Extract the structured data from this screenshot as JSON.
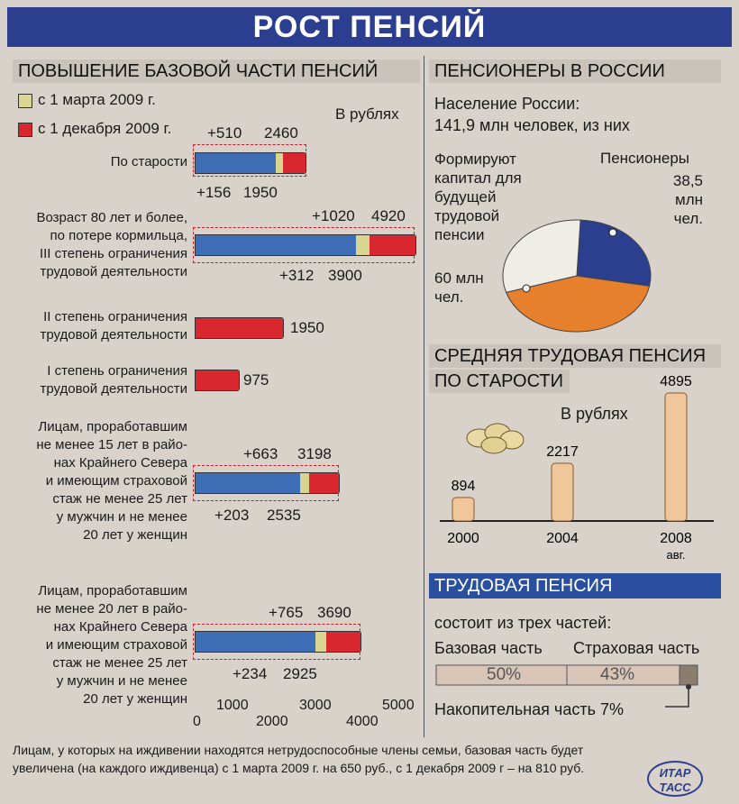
{
  "title": "РОСТ ПЕНСИЙ",
  "left": {
    "header": "ПОВЫШЕНИЕ БАЗОВОЙ ЧАСТИ ПЕНСИЙ",
    "legend": [
      {
        "label": "с 1 марта 2009 г.",
        "color": "#d7d58f"
      },
      {
        "label": "с 1 декабря 2009 г.",
        "color": "#d8272e"
      }
    ],
    "unit": "В рублях",
    "base_color": "#3e6fb6",
    "axis_ticks": [
      "0",
      "1000",
      "2000",
      "3000",
      "4000",
      "5000"
    ],
    "footnote": "Лицам, у которых на иждивении находятся нетрудоспособные члены семьи, базовая часть будет увеличена (на каждого иждивенца) с 1 марта 2009 г. на 650 руб., с 1 декабря 2009 г – на 810 руб."
  },
  "chart_data": [
    {
      "type": "bar",
      "orientation": "horizontal",
      "title": "ПОВЫШЕНИЕ БАЗОВОЙ ЧАСТИ ПЕНСИЙ",
      "unit": "В рублях",
      "xlim": [
        0,
        5000
      ],
      "rows": [
        {
          "label": "По старости",
          "march": 1950,
          "march_inc": "+156",
          "dec": 2460,
          "dec_inc": "+510"
        },
        {
          "label": "Возраст 80 лет и более, по потере кормильца, III степень ограничения трудовой деятельности",
          "march": 3900,
          "march_inc": "+312",
          "dec": 4920,
          "dec_inc": "+1020"
        },
        {
          "label": "II степень ограничения трудовой деятельности",
          "value": 1950
        },
        {
          "label": "I степень ограничения трудовой деятельности",
          "value": 975
        },
        {
          "label": "Лицам, проработавшим не менее 15 лет в районах Крайнего Севера и имеющим страховой стаж не менее 25 лет у мужчин и не менее 20 лет у женщин",
          "march": 2535,
          "march_inc": "+203",
          "dec": 3198,
          "dec_inc": "+663"
        },
        {
          "label": "Лицам, проработавшим не менее 20 лет в районах Крайнего Севера и имеющим страховой стаж не менее 25 лет у мужчин и не менее 20 лет у женщин",
          "march": 2925,
          "march_inc": "+234",
          "dec": 3690,
          "dec_inc": "+765"
        }
      ]
    },
    {
      "type": "pie",
      "title": "ПЕНСИОНЕРЫ В РОССИИ",
      "intro": "Население России: 141,9 млн человек, из них",
      "slices": [
        {
          "label": "Пенсионеры",
          "value_text": "38,5 млн чел.",
          "value": 38.5,
          "color": "#2b3f8e"
        },
        {
          "label": "Формируют капитал для будущей трудовой пенсии",
          "value_text": "60 млн чел.",
          "value": 60,
          "color": "#e6802c"
        },
        {
          "label": "",
          "value": 43.4,
          "color": "#f0ece6"
        }
      ]
    },
    {
      "type": "bar",
      "title": "СРЕДНЯЯ ТРУДОВАЯ ПЕНСИЯ ПО СТАРОСТИ",
      "unit": "В рублях",
      "categories": [
        "2000",
        "2004",
        "2008 авг."
      ],
      "values": [
        894,
        2217,
        4895
      ],
      "color": "#f0c79a"
    },
    {
      "type": "bar",
      "stacked": true,
      "title": "ТРУДОВАЯ ПЕНСИЯ",
      "subtitle": "состоит из трех частей:",
      "parts": [
        {
          "label": "Базовая часть",
          "value": 50,
          "text": "50%"
        },
        {
          "label": "Страховая часть",
          "value": 43,
          "text": "43%"
        },
        {
          "label": "Накопительная часть 7%",
          "value": 7,
          "text": "7%"
        }
      ]
    }
  ],
  "right": {
    "pens_header": "ПЕНСИОНЕРЫ В РОССИИ",
    "pop_line1": "Население России:",
    "pop_line2": "141,9 млн человек, из них",
    "left_label": [
      "Формируют",
      "капитал для",
      "будущей",
      "трудовой",
      "пенсии"
    ],
    "left_value": [
      "60 млн",
      "чел."
    ],
    "right_label": "Пенсионеры",
    "right_value": [
      "38,5",
      "млн",
      "чел."
    ],
    "avg_header1": "СРЕДНЯЯ ТРУДОВАЯ ПЕНСИЯ",
    "avg_header2": "ПО СТАРОСТИ",
    "avg_unit": "В рублях",
    "trud_header": "ТРУДОВАЯ ПЕНСИЯ",
    "trud_sub": "состоит из трех частей:",
    "base_label": "Базовая часть",
    "ins_label": "Страховая часть",
    "base_pct": "50%",
    "ins_pct": "43%",
    "acc_label": "Накопительная часть 7%"
  },
  "logo_text": "ИТАР ТАСС"
}
